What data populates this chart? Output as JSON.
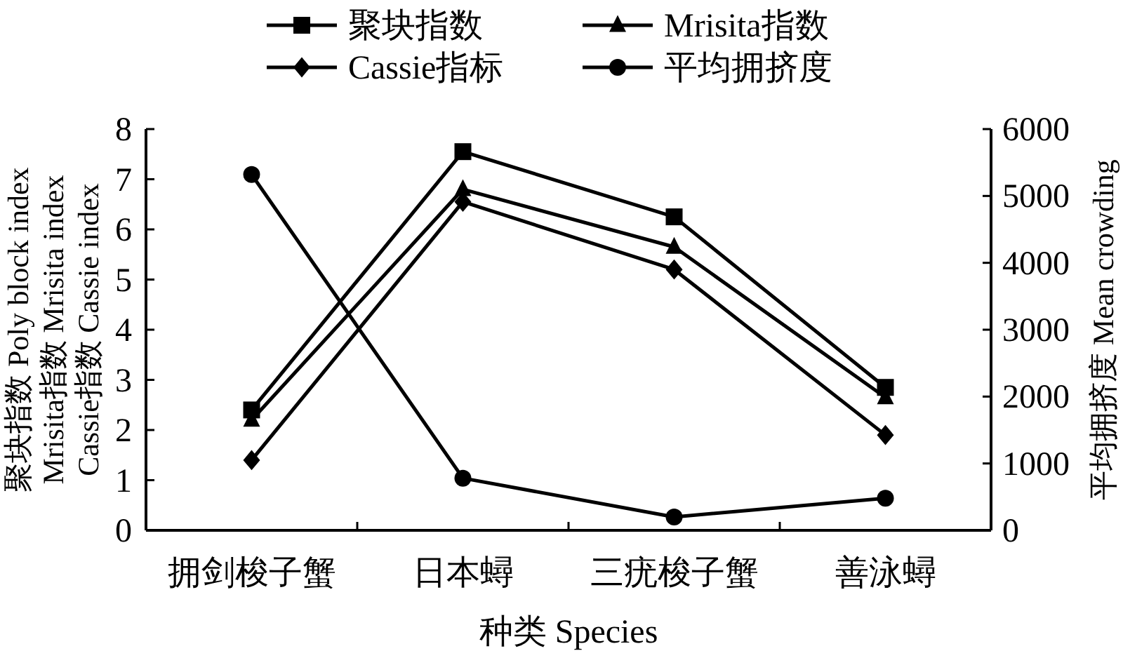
{
  "chart_data": {
    "type": "line",
    "categories": [
      "拥剑梭子蟹",
      "日本蟳",
      "三疣梭子蟹",
      "善泳蟳"
    ],
    "xlabel": "种类 Species",
    "ylabel": "聚块指数 Poly block index\nMrisita指数 Mrisita index\nCassie指数 Cassie index",
    "y2label": "平均拥挤度 Mean crowding",
    "ylim": [
      0,
      8
    ],
    "yticks": [
      0,
      1,
      2,
      3,
      4,
      5,
      6,
      7,
      8
    ],
    "y2lim": [
      0,
      6000
    ],
    "y2ticks": [
      0,
      1000,
      2000,
      3000,
      4000,
      5000,
      6000
    ],
    "legend": "top",
    "grid": false,
    "line_style": "solid",
    "series": [
      {
        "name": "聚块指数",
        "color": "#000000",
        "marker": "square",
        "values": [
          2.4,
          7.55,
          6.25,
          2.85
        ]
      },
      {
        "name": "Mrisita指数",
        "color": "#000000",
        "marker": "triangle",
        "values": [
          2.2,
          6.8,
          5.65,
          2.65
        ]
      },
      {
        "name": "Cassie指标",
        "color": "#000000",
        "marker": "diamond",
        "values": [
          1.4,
          6.55,
          5.2,
          1.9
        ]
      },
      {
        "name": "平均拥挤度",
        "color": "#000000",
        "marker": "circle",
        "axis": "y2",
        "values": [
          5320,
          780,
          200,
          480
        ]
      }
    ]
  }
}
